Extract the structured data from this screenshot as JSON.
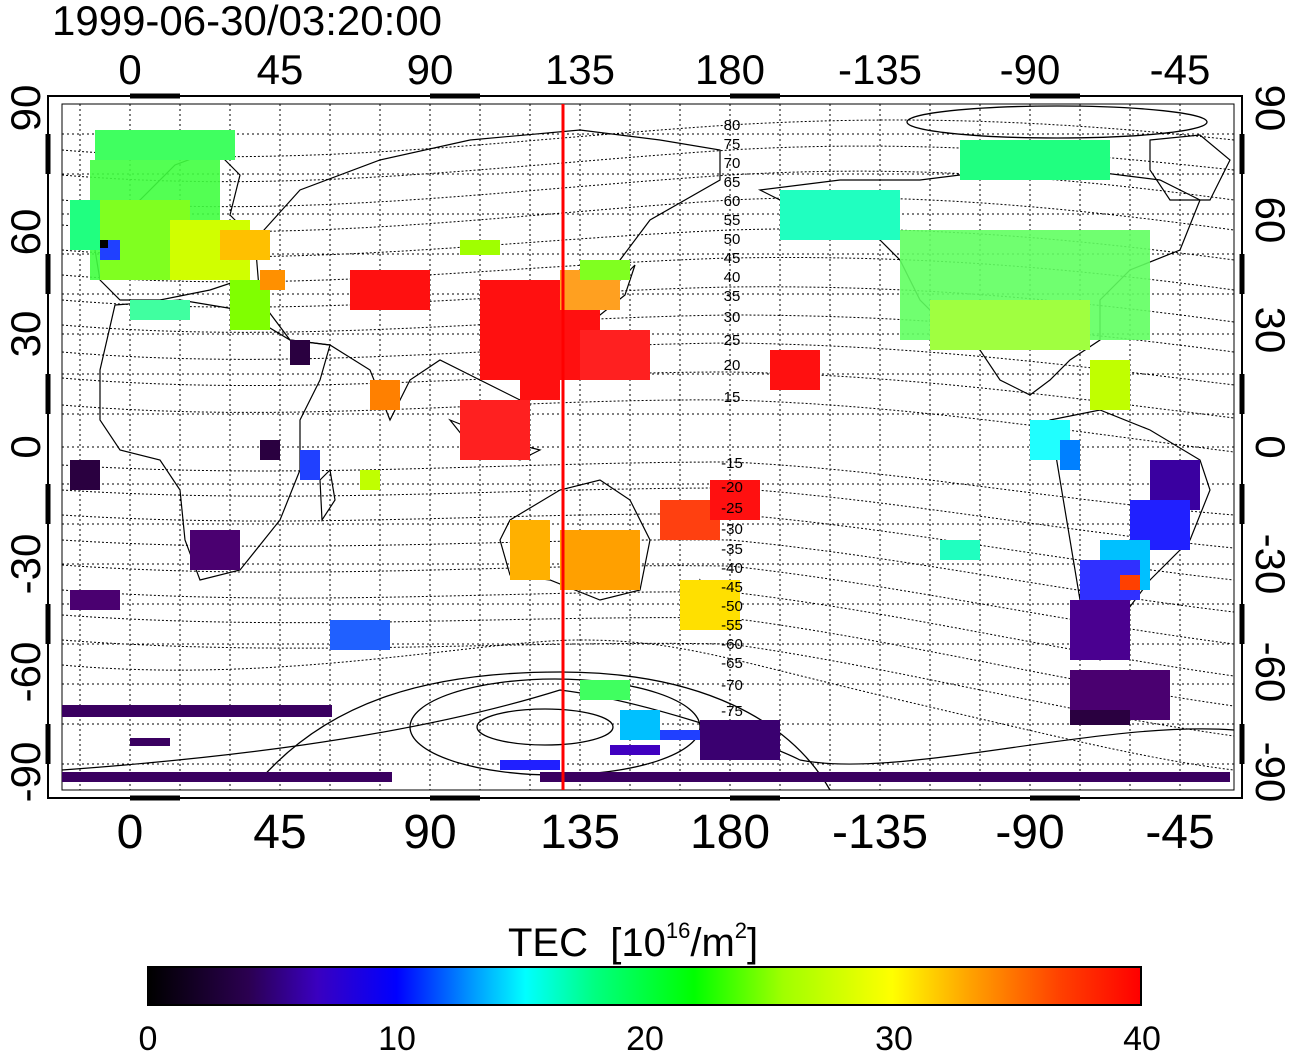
{
  "title": "1999-06-30/03:20:00",
  "map": {
    "lon_tick_labels": [
      "0",
      "45",
      "90",
      "135",
      "180",
      "-135",
      "-90",
      "-45"
    ],
    "lat_tick_labels": [
      "90",
      "60",
      "30",
      "0",
      "-30",
      "-60",
      "-90"
    ],
    "contour_labels_north": [
      "80",
      "75",
      "70",
      "65",
      "60",
      "55",
      "50",
      "45",
      "40",
      "35",
      "30",
      "25",
      "20",
      "15"
    ],
    "contour_labels_south": [
      "-15",
      "-20",
      "-25",
      "-30",
      "-35",
      "-40",
      "-45",
      "-50",
      "-55",
      "-60",
      "-65",
      "-70",
      "-75"
    ],
    "marker_longitude": 130,
    "marker_color": "#ff0000"
  },
  "colorbar": {
    "title": "TEC",
    "unit_base": "[10",
    "unit_exp": "16",
    "unit_mid": "/m",
    "unit_exp2": "2",
    "unit_end": "]",
    "ticks": [
      "0",
      "10",
      "20",
      "30",
      "40"
    ]
  }
}
